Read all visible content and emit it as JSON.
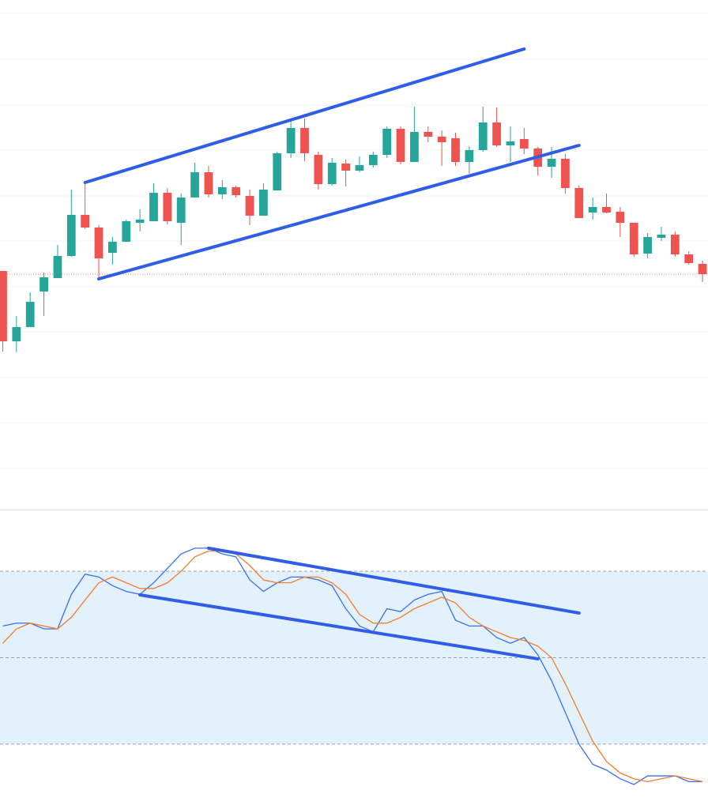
{
  "chart_data": [
    {
      "type": "candlestick",
      "xlim": [
        -0.2,
        51.4
      ],
      "ylim": [
        0,
        645
      ],
      "yticks": [
        52,
        110,
        167,
        225,
        282,
        340,
        397,
        455,
        512,
        570,
        628
      ],
      "grid": true,
      "up_color": "#26a69a",
      "down_color": "#ef5350",
      "last_price_line": true,
      "open": [
        302,
        213,
        231,
        276,
        293,
        321,
        373,
        357,
        325,
        339,
        363,
        365,
        401,
        363,
        395,
        427,
        399,
        408,
        397,
        372,
        404,
        451,
        483,
        449,
        412,
        438,
        429,
        436,
        449,
        482,
        440,
        478,
        472,
        470,
        440,
        455,
        490,
        461,
        469,
        457,
        434,
        444,
        407,
        376,
        383,
        377,
        363,
        324,
        344,
        348,
        323,
        311
      ],
      "high": [
        302,
        245,
        275,
        300,
        335,
        405,
        413,
        360,
        345,
        367,
        380,
        413,
        407,
        400,
        439,
        435,
        417,
        410,
        405,
        413,
        453,
        495,
        495,
        453,
        445,
        443,
        447,
        453,
        485,
        485,
        510,
        485,
        480,
        477,
        460,
        510,
        509,
        485,
        483,
        459,
        459,
        450,
        410,
        395,
        400,
        383,
        363,
        350,
        358,
        352,
        327,
        315
      ],
      "low": [
        200,
        199,
        231,
        245,
        293,
        320,
        355,
        293,
        310,
        339,
        352,
        365,
        361,
        335,
        395,
        395,
        393,
        395,
        360,
        372,
        404,
        445,
        441,
        405,
        410,
        409,
        427,
        433,
        445,
        437,
        440,
        465,
        435,
        435,
        425,
        453,
        459,
        440,
        450,
        423,
        420,
        400,
        369,
        367,
        375,
        345,
        320,
        318,
        340,
        320,
        310,
        288
      ],
      "close": [
        213,
        231,
        263,
        294,
        321,
        373,
        357,
        318,
        339,
        365,
        367,
        401,
        365,
        395,
        427,
        399,
        408,
        398,
        372,
        405,
        451,
        483,
        451,
        412,
        439,
        429,
        436,
        449,
        482,
        440,
        478,
        472,
        465,
        440,
        455,
        490,
        461,
        466,
        457,
        434,
        444,
        407,
        369,
        383,
        376,
        363,
        323,
        345,
        348,
        323,
        312,
        298
      ],
      "trendline_color": "#2f5de8",
      "trendlines": [
        {
          "x": [
            6,
            38
          ],
          "y": [
            414,
            583
          ]
        },
        {
          "x": [
            7,
            42
          ],
          "y": [
            292,
            461
          ]
        }
      ]
    },
    {
      "type": "line",
      "xlim": [
        -0.2,
        51.4
      ],
      "ylim": [
        -2.5,
        101.4
      ],
      "yticks": [
        20,
        50,
        80
      ],
      "band": [
        20,
        80
      ],
      "band_color": "#e3f1fc",
      "series": [
        {
          "color": "#3a6ff0",
          "values": [
            61,
            62,
            62,
            60,
            60,
            72,
            79,
            78,
            75,
            73,
            72,
            76,
            81,
            86,
            88,
            88,
            86,
            85,
            77,
            73,
            76,
            78,
            78,
            77,
            75,
            67,
            61,
            59,
            67,
            66,
            70,
            72,
            73,
            63,
            61,
            61,
            57,
            55,
            57,
            51,
            42,
            31,
            20,
            13,
            11,
            8,
            6,
            9,
            9,
            9,
            7,
            7
          ]
        },
        {
          "color": "#f57c2b",
          "values": [
            55,
            60,
            62,
            61,
            60,
            64,
            70,
            76,
            78,
            76,
            74,
            74,
            76,
            80,
            85,
            87,
            87,
            86,
            82,
            77,
            76,
            76,
            78,
            78,
            76,
            72,
            65,
            62,
            62,
            64,
            67,
            69,
            71,
            69,
            64,
            61,
            59,
            57,
            56,
            54,
            50,
            41,
            31,
            21,
            14,
            10,
            8,
            7,
            8,
            9,
            8,
            7
          ]
        }
      ],
      "trendline_color": "#2f5de8",
      "trendlines": [
        {
          "x": [
            15,
            42
          ],
          "y": [
            88,
            65.5
          ]
        },
        {
          "x": [
            10,
            39
          ],
          "y": [
            71.8,
            49.6
          ]
        }
      ]
    }
  ]
}
